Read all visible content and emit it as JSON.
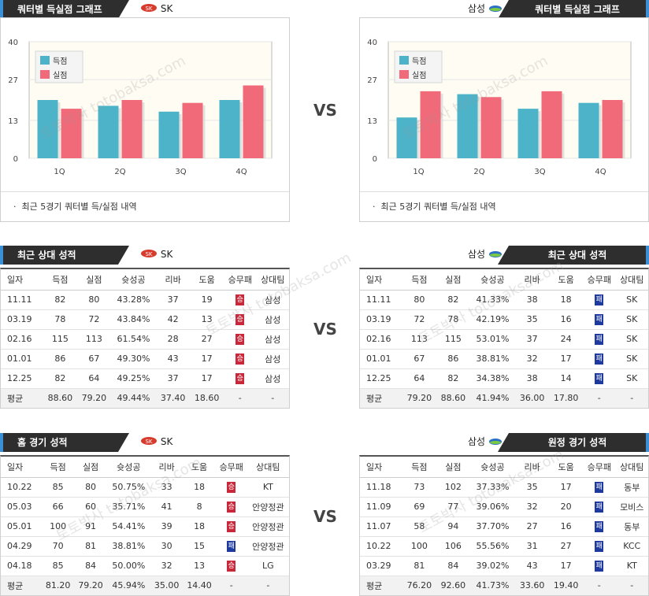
{
  "watermark": {
    "line1": "토토박사",
    "line2": "totobaksa.com"
  },
  "vs_label": "VS",
  "left_team": "SK",
  "right_team": "삼성",
  "quarter_title": "쿼터별 득실점 그래프",
  "quarter_note": "최근 5경기 쿼터별 득/실점 내역",
  "colors": {
    "scored": "#4cb3c9",
    "conceded": "#f06a7a",
    "header_bg": "#2e2e2e",
    "accent": "#3a8fd6",
    "win": "#c8283a",
    "loss": "#1f3a9e"
  },
  "legend": {
    "scored": "득점",
    "conceded": "실점"
  },
  "chart_data": [
    {
      "type": "bar",
      "categories": [
        "1Q",
        "2Q",
        "3Q",
        "4Q"
      ],
      "series": [
        {
          "name": "득점",
          "values": [
            20,
            18,
            16,
            20
          ]
        },
        {
          "name": "실점",
          "values": [
            17,
            20,
            19,
            25
          ]
        }
      ],
      "yticks": [
        0,
        13,
        27,
        40
      ],
      "ylim": [
        0,
        40
      ]
    },
    {
      "type": "bar",
      "categories": [
        "1Q",
        "2Q",
        "3Q",
        "4Q"
      ],
      "series": [
        {
          "name": "득점",
          "values": [
            14,
            22,
            17,
            19
          ]
        },
        {
          "name": "실점",
          "values": [
            23,
            21,
            23,
            20
          ]
        }
      ],
      "yticks": [
        0,
        13,
        27,
        40
      ],
      "ylim": [
        0,
        40
      ]
    }
  ],
  "columns": [
    "일자",
    "득점",
    "실점",
    "슛성공",
    "리바",
    "도움",
    "승무패",
    "상대팀"
  ],
  "h2h": {
    "title": "최근 상대 성적",
    "left_rows": [
      [
        "11.11",
        "82",
        "80",
        "43.28%",
        "37",
        "19",
        "승",
        "삼성"
      ],
      [
        "03.19",
        "78",
        "72",
        "43.84%",
        "42",
        "13",
        "승",
        "삼성"
      ],
      [
        "02.16",
        "115",
        "113",
        "61.54%",
        "28",
        "27",
        "승",
        "삼성"
      ],
      [
        "01.01",
        "86",
        "67",
        "49.30%",
        "43",
        "17",
        "승",
        "삼성"
      ],
      [
        "12.25",
        "82",
        "64",
        "49.25%",
        "37",
        "17",
        "승",
        "삼성"
      ]
    ],
    "left_avg": [
      "평균",
      "88.60",
      "79.20",
      "49.44%",
      "37.40",
      "18.60",
      "-",
      "-"
    ],
    "right_rows": [
      [
        "11.11",
        "80",
        "82",
        "41.33%",
        "38",
        "18",
        "패",
        "SK"
      ],
      [
        "03.19",
        "72",
        "78",
        "42.19%",
        "35",
        "16",
        "패",
        "SK"
      ],
      [
        "02.16",
        "113",
        "115",
        "53.01%",
        "37",
        "24",
        "패",
        "SK"
      ],
      [
        "01.01",
        "67",
        "86",
        "38.81%",
        "32",
        "17",
        "패",
        "SK"
      ],
      [
        "12.25",
        "64",
        "82",
        "34.38%",
        "38",
        "14",
        "패",
        "SK"
      ]
    ],
    "right_avg": [
      "평균",
      "79.20",
      "88.60",
      "41.94%",
      "36.00",
      "17.80",
      "-",
      "-"
    ]
  },
  "home": {
    "title": "홈 경기 성적",
    "rows": [
      [
        "10.22",
        "85",
        "80",
        "50.75%",
        "33",
        "18",
        "승",
        "KT"
      ],
      [
        "05.03",
        "66",
        "60",
        "35.71%",
        "41",
        "8",
        "승",
        "안양정관"
      ],
      [
        "05.01",
        "100",
        "91",
        "54.41%",
        "39",
        "18",
        "승",
        "안양정관"
      ],
      [
        "04.29",
        "70",
        "81",
        "38.81%",
        "30",
        "15",
        "패",
        "안양정관"
      ],
      [
        "04.18",
        "85",
        "84",
        "50.00%",
        "32",
        "13",
        "승",
        "LG"
      ]
    ],
    "avg": [
      "평균",
      "81.20",
      "79.20",
      "45.94%",
      "35.00",
      "14.40",
      "-",
      "-"
    ]
  },
  "away": {
    "title": "원정 경기 성적",
    "rows": [
      [
        "11.18",
        "73",
        "102",
        "37.33%",
        "35",
        "17",
        "패",
        "동부"
      ],
      [
        "11.09",
        "69",
        "77",
        "39.06%",
        "32",
        "20",
        "패",
        "모비스"
      ],
      [
        "11.07",
        "58",
        "94",
        "37.70%",
        "27",
        "16",
        "패",
        "동부"
      ],
      [
        "10.22",
        "100",
        "106",
        "55.56%",
        "31",
        "27",
        "패",
        "KCC"
      ],
      [
        "03.29",
        "81",
        "84",
        "39.02%",
        "43",
        "17",
        "패",
        "KT"
      ]
    ],
    "avg": [
      "평균",
      "76.20",
      "92.60",
      "41.73%",
      "33.60",
      "19.40",
      "-",
      "-"
    ]
  }
}
